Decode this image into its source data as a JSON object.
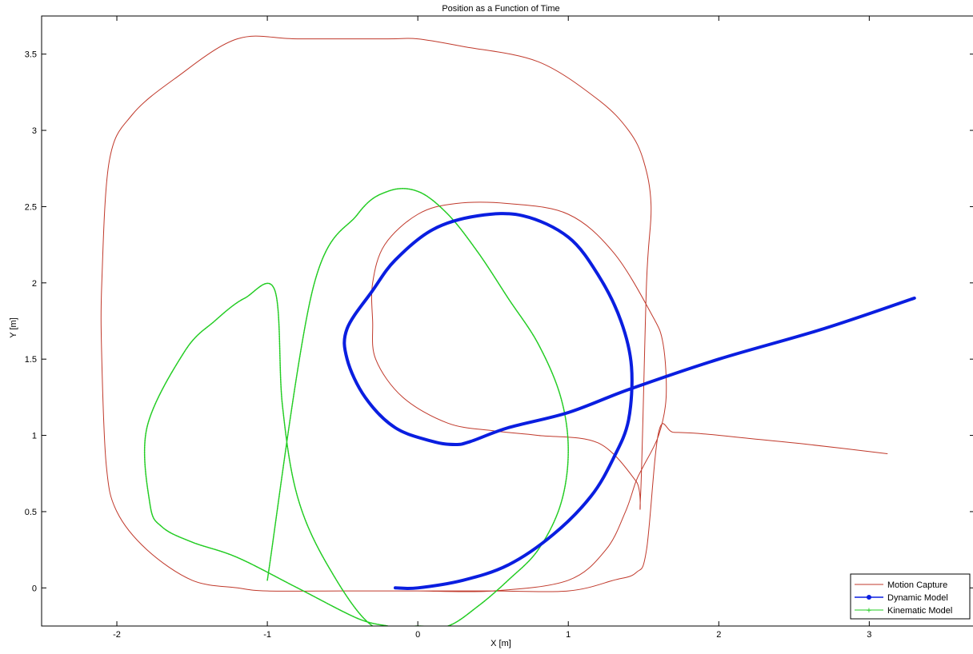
{
  "chart_data": {
    "type": "line",
    "title": "Position as a Function of Time",
    "xlabel": "X [m]",
    "ylabel": "Y [m]",
    "xlim": [
      -2.5,
      3.7
    ],
    "ylim": [
      -0.25,
      3.75
    ],
    "xticks": [
      -2,
      -1,
      0,
      1,
      2,
      3
    ],
    "yticks": [
      0,
      0.5,
      1,
      1.5,
      2,
      2.5,
      3,
      3.5
    ],
    "xtick_labels": [
      "-2",
      "-1",
      "0",
      "1",
      "2",
      "3"
    ],
    "ytick_labels": [
      "0",
      "0.5",
      "1",
      "1.5",
      "2",
      "2.5",
      "3",
      "3.5"
    ],
    "grid": false,
    "legend_position": "bottom-right",
    "series": [
      {
        "name": "Motion Capture",
        "color": "#c0392b",
        "width": 1,
        "marker": "none",
        "x": [
          -0.2,
          0,
          0.5,
          1.0,
          1.25,
          1.38,
          1.45,
          1.5,
          1.6,
          1.65,
          1.63,
          1.55,
          1.3,
          1.0,
          0.6,
          0.25,
          0.0,
          -0.22,
          -0.3,
          -0.3,
          -0.28,
          -0.1,
          0.2,
          0.5,
          0.8,
          1.2,
          1.45,
          1.48,
          1.52,
          1.55,
          1.5,
          1.4,
          1.2,
          0.8,
          0.3,
          0.0,
          -0.2,
          -0.8,
          -1.2,
          -1.6,
          -1.9,
          -2.05,
          -2.1,
          -2.1,
          -2.07,
          -2.0,
          -1.8,
          -1.5,
          -1.2,
          -1.0,
          -0.5,
          0.0,
          0.5,
          1.0,
          1.3,
          1.45,
          1.52,
          1.6,
          1.7,
          1.9,
          2.2,
          2.6,
          3.12
        ],
        "y": [
          -0.02,
          -0.02,
          -0.02,
          0.05,
          0.25,
          0.5,
          0.7,
          0.8,
          1.0,
          1.25,
          1.6,
          1.8,
          2.2,
          2.45,
          2.52,
          2.52,
          2.45,
          2.25,
          2.0,
          1.75,
          1.5,
          1.25,
          1.08,
          1.03,
          1.0,
          0.95,
          0.7,
          0.6,
          2.0,
          2.5,
          2.8,
          3.0,
          3.2,
          3.45,
          3.55,
          3.6,
          3.6,
          3.6,
          3.6,
          3.35,
          3.1,
          2.8,
          2.0,
          1.5,
          0.8,
          0.5,
          0.25,
          0.05,
          0.0,
          -0.02,
          -0.02,
          -0.02,
          -0.02,
          -0.02,
          0.05,
          0.1,
          0.25,
          1.02,
          1.02,
          1.01,
          0.98,
          0.94,
          0.88
        ]
      },
      {
        "name": "Dynamic Model",
        "color": "#0a1ee0",
        "width": 4,
        "marker": "dot",
        "x": [
          -0.15,
          0.0,
          0.3,
          0.6,
          0.9,
          1.15,
          1.3,
          1.4,
          1.42,
          1.35,
          1.2,
          1.0,
          0.7,
          0.4,
          0.1,
          -0.15,
          -0.3,
          -0.47,
          -0.47,
          -0.35,
          -0.15,
          0.1,
          0.25,
          0.35,
          0.6,
          1.0,
          1.4,
          2.0,
          2.7,
          3.3
        ],
        "y": [
          0.0,
          0.0,
          0.05,
          0.15,
          0.35,
          0.6,
          0.85,
          1.1,
          1.45,
          1.75,
          2.05,
          2.3,
          2.44,
          2.44,
          2.35,
          2.15,
          1.95,
          1.7,
          1.5,
          1.25,
          1.05,
          0.96,
          0.94,
          0.96,
          1.05,
          1.15,
          1.3,
          1.5,
          1.7,
          1.9
        ]
      },
      {
        "name": "Kinematic Model",
        "color": "#22cc22",
        "width": 1.5,
        "marker": "plus",
        "x": [
          -1.0,
          -0.7,
          -0.4,
          -0.2,
          0.0,
          0.2,
          0.4,
          0.6,
          0.8,
          0.95,
          1.0,
          0.95,
          0.8,
          0.6,
          0.4,
          0.2,
          0.0,
          -0.3,
          -0.6,
          -0.8,
          -0.9,
          -0.95,
          -1.15,
          -1.35,
          -1.55,
          -1.8,
          -1.78,
          -1.7,
          -1.5,
          -1.2,
          -0.8,
          -0.4,
          -0.2
        ],
        "y": [
          0.05,
          1.95,
          2.45,
          2.6,
          2.6,
          2.45,
          2.2,
          1.9,
          1.6,
          1.25,
          0.9,
          0.55,
          0.25,
          0.05,
          -0.12,
          -0.25,
          -0.25,
          -0.25,
          0.15,
          0.6,
          1.2,
          1.95,
          1.9,
          1.75,
          1.55,
          1.05,
          0.55,
          0.4,
          0.3,
          0.2,
          0.0,
          -0.2,
          -0.25
        ]
      }
    ]
  }
}
